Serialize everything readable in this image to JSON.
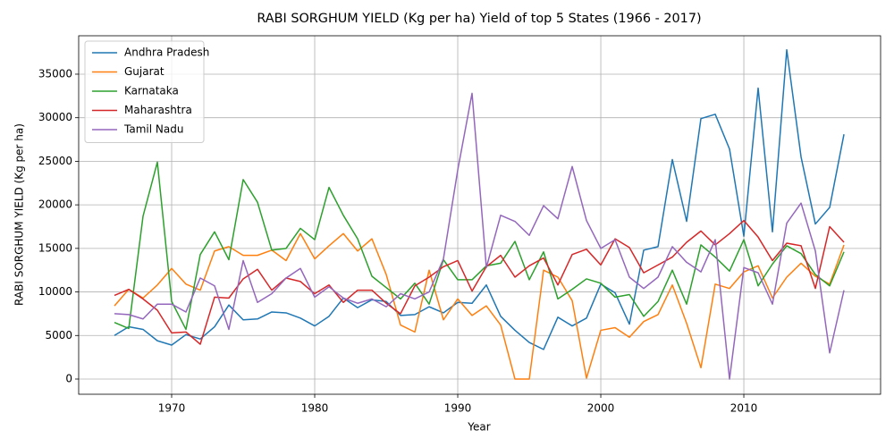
{
  "chart_data": {
    "type": "line",
    "title": "RABI SORGHUM YIELD (Kg per ha) Yield of top 5 States (1966 - 2017)",
    "x_label": "Year",
    "y_label": "RABI SORGHUM YIELD (Kg per ha)",
    "x": [
      1966,
      1967,
      1968,
      1969,
      1970,
      1971,
      1972,
      1973,
      1974,
      1975,
      1976,
      1977,
      1978,
      1979,
      1980,
      1981,
      1982,
      1983,
      1984,
      1985,
      1986,
      1987,
      1988,
      1989,
      1990,
      1991,
      1992,
      1993,
      1994,
      1995,
      1996,
      1997,
      1998,
      1999,
      2000,
      2001,
      2002,
      2003,
      2004,
      2005,
      2006,
      2007,
      2008,
      2009,
      2010,
      2011,
      2012,
      2013,
      2014,
      2015,
      2016,
      2017
    ],
    "series": [
      {
        "name": "Andhra Pradesh",
        "color": "#1f77b4",
        "values": [
          5000,
          6000,
          5700,
          4400,
          3900,
          5100,
          4600,
          6000,
          8500,
          6800,
          6900,
          7700,
          7600,
          7000,
          6100,
          7200,
          9300,
          8200,
          9100,
          8900,
          7300,
          7400,
          8300,
          7600,
          8800,
          8700,
          10800,
          7200,
          5600,
          4200,
          3400,
          7100,
          6100,
          7000,
          10900,
          9900,
          6300,
          14800,
          15200,
          25200,
          18100,
          29900,
          30400,
          26400,
          16400,
          33400,
          16900,
          37800,
          25500,
          17800,
          19700,
          28100
        ]
      },
      {
        "name": "Gujarat",
        "color": "#ff7f0e",
        "values": [
          8400,
          10300,
          9300,
          10800,
          12700,
          10900,
          10200,
          14700,
          15200,
          14200,
          14200,
          14800,
          13600,
          16700,
          13800,
          15300,
          16700,
          14700,
          16100,
          12000,
          6200,
          5400,
          12500,
          6800,
          9200,
          7300,
          8400,
          6200,
          0,
          0,
          12500,
          11700,
          9000,
          100,
          5600,
          5900,
          4800,
          6600,
          7400,
          10800,
          6400,
          1300,
          10900,
          10400,
          12300,
          13000,
          9300,
          11700,
          13300,
          11800,
          10900,
          15400
        ]
      },
      {
        "name": "Karnataka",
        "color": "#2ca02c",
        "values": [
          6500,
          5800,
          18700,
          24900,
          8900,
          5700,
          14300,
          16900,
          13700,
          22900,
          20300,
          14800,
          15000,
          17300,
          16000,
          22000,
          18800,
          16100,
          11800,
          10500,
          9200,
          11000,
          8600,
          13700,
          11400,
          11400,
          13000,
          13300,
          15800,
          11400,
          14600,
          9200,
          10300,
          11500,
          11000,
          9400,
          9700,
          7200,
          8900,
          12500,
          8600,
          15400,
          14000,
          12400,
          16000,
          10700,
          13200,
          15300,
          14400,
          12000,
          10700,
          14600
        ]
      },
      {
        "name": "Maharashtra",
        "color": "#d62728",
        "values": [
          9600,
          10300,
          9200,
          7900,
          5300,
          5400,
          4000,
          9400,
          9300,
          11500,
          12600,
          10200,
          11600,
          11200,
          9800,
          10800,
          8800,
          10200,
          10200,
          8700,
          7500,
          10700,
          11700,
          12900,
          13600,
          10100,
          12900,
          14200,
          11700,
          13000,
          13900,
          10800,
          14300,
          14900,
          13100,
          16100,
          15100,
          12200,
          13100,
          14000,
          15700,
          17000,
          15400,
          16700,
          18200,
          16300,
          13600,
          15600,
          15300,
          10400,
          17500,
          15700
        ]
      },
      {
        "name": "Tamil Nadu",
        "color": "#9467bd",
        "values": [
          7500,
          7400,
          6900,
          8600,
          8600,
          7700,
          11600,
          10700,
          5700,
          13600,
          8800,
          9800,
          11600,
          12700,
          9400,
          10600,
          9300,
          8700,
          9200,
          8300,
          9800,
          9200,
          10000,
          13800,
          24000,
          32800,
          12800,
          18800,
          18100,
          16500,
          19900,
          18400,
          24400,
          18200,
          15000,
          16000,
          11700,
          10400,
          11700,
          15200,
          13400,
          12300,
          16000,
          0,
          12800,
          12200,
          8600,
          17900,
          20200,
          14700,
          3000,
          10200
        ]
      }
    ],
    "xlim": [
      1963.5,
      2019.56
    ],
    "ylim": [
      -1745,
      39410
    ],
    "xticks": [
      1970,
      1980,
      1990,
      2000,
      2010
    ],
    "yticks": [
      0,
      5000,
      10000,
      15000,
      20000,
      25000,
      30000,
      35000
    ],
    "grid": true,
    "legend": "upper left"
  }
}
